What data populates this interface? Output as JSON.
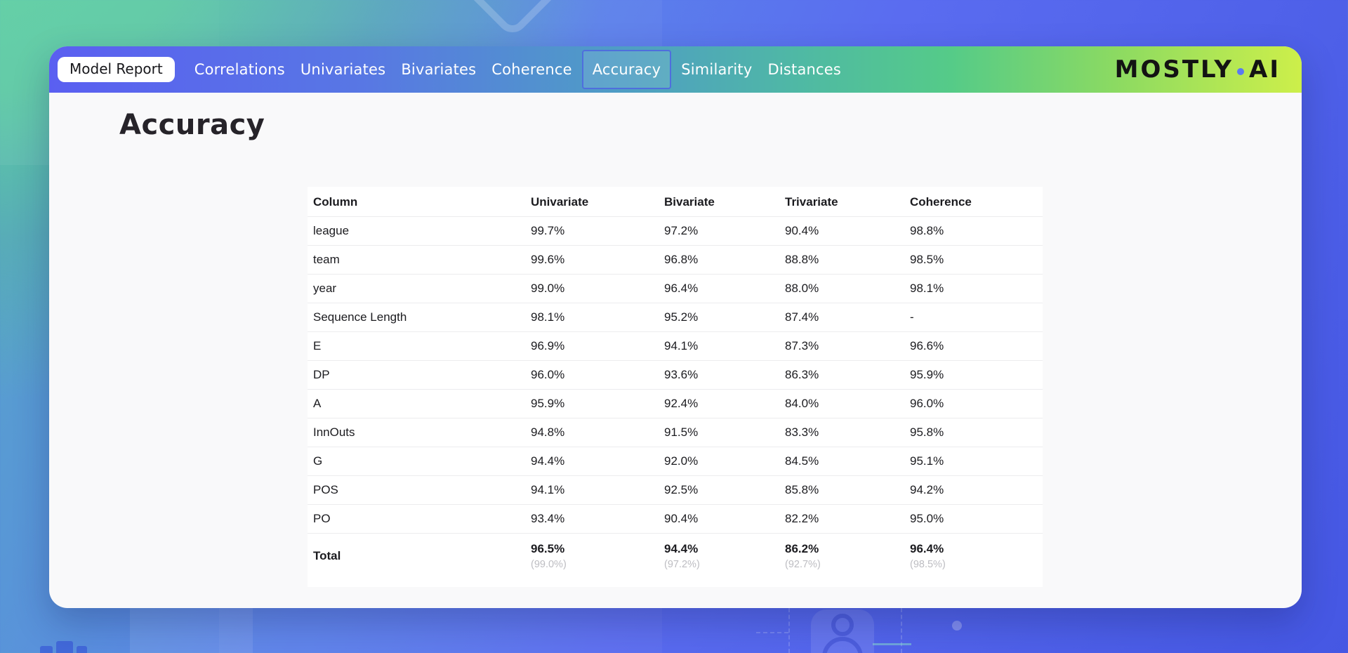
{
  "nav": {
    "badge": "Model Report",
    "items": [
      {
        "label": "Correlations",
        "active": false
      },
      {
        "label": "Univariates",
        "active": false
      },
      {
        "label": "Bivariates",
        "active": false
      },
      {
        "label": "Coherence",
        "active": false
      },
      {
        "label": "Accuracy",
        "active": true
      },
      {
        "label": "Similarity",
        "active": false
      },
      {
        "label": "Distances",
        "active": false
      }
    ],
    "logo": {
      "left": "MOSTLY",
      "right": "AI"
    }
  },
  "page": {
    "title": "Accuracy"
  },
  "table": {
    "headers": [
      "Column",
      "Univariate",
      "Bivariate",
      "Trivariate",
      "Coherence"
    ],
    "rows": [
      [
        "league",
        "99.7%",
        "97.2%",
        "90.4%",
        "98.8%"
      ],
      [
        "team",
        "99.6%",
        "96.8%",
        "88.8%",
        "98.5%"
      ],
      [
        "year",
        "99.0%",
        "96.4%",
        "88.0%",
        "98.1%"
      ],
      [
        "Sequence Length",
        "98.1%",
        "95.2%",
        "87.4%",
        "-"
      ],
      [
        "E",
        "96.9%",
        "94.1%",
        "87.3%",
        "96.6%"
      ],
      [
        "DP",
        "96.0%",
        "93.6%",
        "86.3%",
        "95.9%"
      ],
      [
        "A",
        "95.9%",
        "92.4%",
        "84.0%",
        "96.0%"
      ],
      [
        "InnOuts",
        "94.8%",
        "91.5%",
        "83.3%",
        "95.8%"
      ],
      [
        "G",
        "94.4%",
        "92.0%",
        "84.5%",
        "95.1%"
      ],
      [
        "POS",
        "94.1%",
        "92.5%",
        "85.8%",
        "94.2%"
      ],
      [
        "PO",
        "93.4%",
        "90.4%",
        "82.2%",
        "95.0%"
      ]
    ],
    "total": {
      "label": "Total",
      "values": [
        "96.5%",
        "94.4%",
        "86.2%",
        "96.4%"
      ],
      "sub_values": [
        "(99.0%)",
        "(97.2%)",
        "(92.7%)",
        "(98.5%)"
      ]
    }
  },
  "colors": {
    "logo_dot": "#5b79f2",
    "active_tab_border": "#4f6edd"
  }
}
